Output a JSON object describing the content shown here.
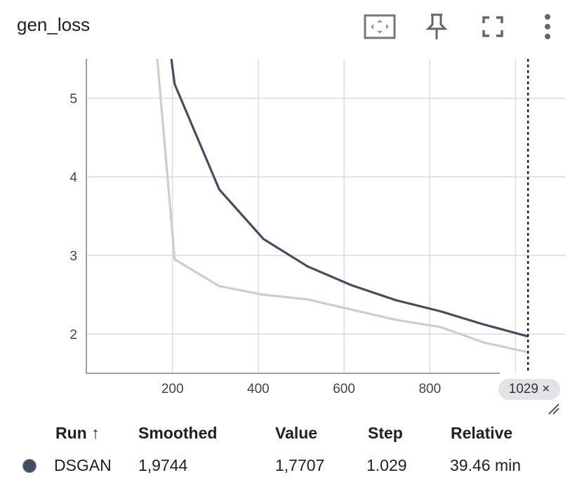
{
  "header": {
    "title": "gen_loss",
    "tools": [
      "fit-domain-icon",
      "pin-icon",
      "fullscreen-icon",
      "more-vert-icon"
    ]
  },
  "chart_data": {
    "type": "line",
    "title": "gen_loss",
    "xlabel": "",
    "ylabel": "",
    "xlim": [
      0,
      1060
    ],
    "ylim": [
      1.5,
      5.5
    ],
    "x_ticks": [
      200,
      400,
      600,
      800
    ],
    "y_ticks": [
      2,
      3,
      4,
      5
    ],
    "grid": true,
    "series": [
      {
        "name": "DSGAN",
        "role": "smoothed",
        "color": "#434e63",
        "x": [
          195,
          205,
          309,
          412,
          515,
          618,
          721,
          824,
          927,
          1029
        ],
        "y": [
          5.6,
          5.18,
          3.84,
          3.21,
          2.86,
          2.62,
          2.43,
          2.29,
          2.12,
          1.97
        ]
      },
      {
        "name": "DSGAN",
        "role": "raw",
        "color": "#c9ced6",
        "x": [
          163,
          205,
          309,
          412,
          515,
          618,
          721,
          824,
          927,
          1029
        ],
        "y": [
          5.6,
          2.95,
          2.61,
          2.5,
          2.44,
          2.31,
          2.18,
          2.09,
          1.89,
          1.77
        ]
      }
    ],
    "hover_step": 1029
  },
  "hover": {
    "step_label": "1029 ×"
  },
  "table": {
    "headers": {
      "run": "Run ↑",
      "smoothed": "Smoothed",
      "value": "Value",
      "step": "Step",
      "relative": "Relative"
    },
    "rows": [
      {
        "run": "DSGAN",
        "smoothed": "1,9744",
        "value": "1,7707",
        "step": "1.029",
        "relative": "39.46 min",
        "color": "#434e63"
      }
    ]
  }
}
